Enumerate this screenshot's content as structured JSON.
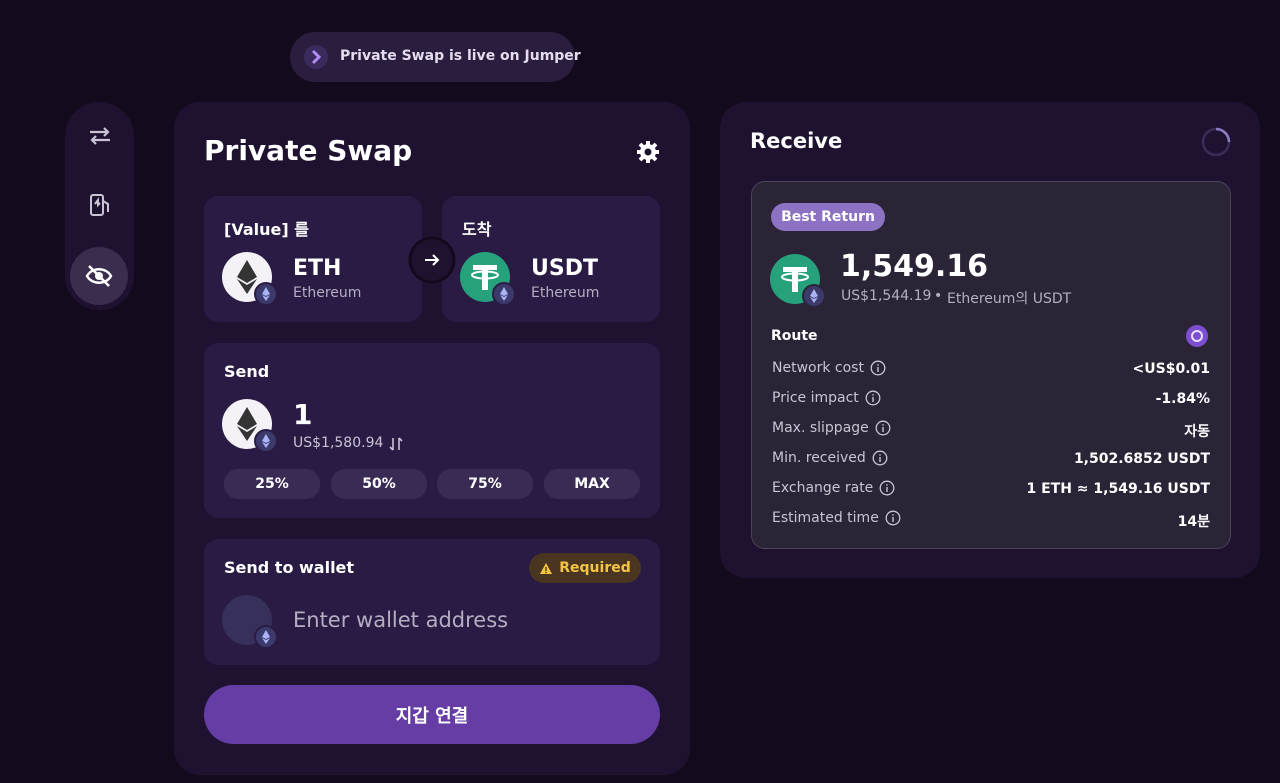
{
  "banner": {
    "text": "Private Swap is live on Jumper"
  },
  "swap": {
    "title": "Private Swap",
    "from": {
      "label": "[Value] 를",
      "token": "ETH",
      "chain": "Ethereum"
    },
    "to": {
      "label": "도착",
      "token": "USDT",
      "chain": "Ethereum"
    },
    "send": {
      "label": "Send",
      "amount": "1",
      "usd": "US$1,580.94",
      "presets": [
        "25%",
        "50%",
        "75%",
        "MAX"
      ]
    },
    "wallet": {
      "label": "Send to wallet",
      "badge": "Required",
      "placeholder": "Enter wallet address"
    },
    "button": "지갑 연결"
  },
  "receive": {
    "title": "Receive",
    "badge": "Best Return",
    "amount": "1,549.16",
    "usd": "US$1,544.19",
    "network": "Ethereum의 USDT",
    "route": "Route",
    "details": [
      {
        "label": "Network cost",
        "value": "<US$0.01"
      },
      {
        "label": "Price impact",
        "value": "-1.84%"
      },
      {
        "label": "Max. slippage",
        "value": "자동"
      },
      {
        "label": "Min. received",
        "value": "1,502.6852 USDT"
      },
      {
        "label": "Exchange rate",
        "value": "1 ETH ≈ 1,549.16 USDT"
      },
      {
        "label": "Estimated time",
        "value": "14분"
      }
    ]
  }
}
